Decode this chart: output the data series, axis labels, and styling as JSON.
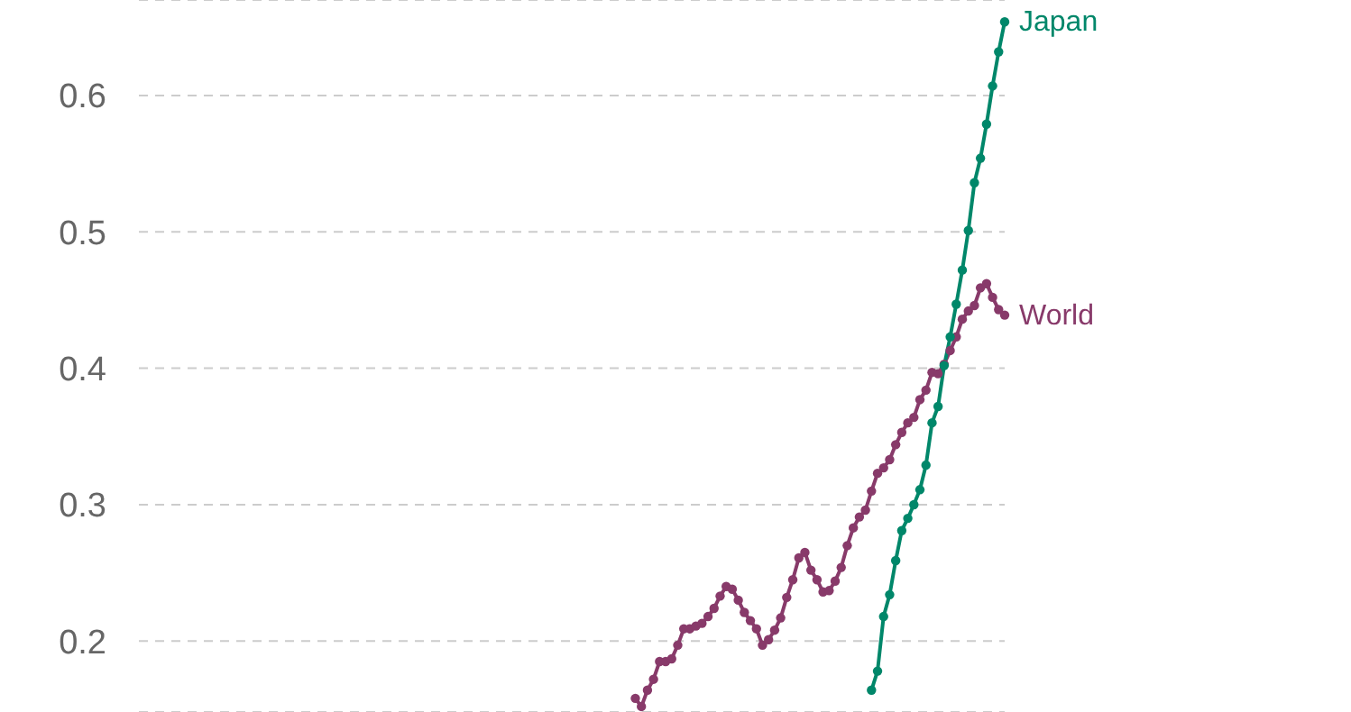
{
  "chart_data": {
    "type": "line",
    "categories": [
      null,
      null,
      null,
      null,
      null,
      null,
      null,
      null,
      null,
      null,
      null,
      null,
      null,
      null,
      null,
      null,
      null,
      null,
      null,
      null,
      null,
      null,
      null,
      null,
      null,
      null,
      null,
      null,
      null,
      null,
      null,
      null,
      null,
      null,
      null,
      null,
      null,
      null,
      null,
      null,
      null,
      null,
      null,
      null,
      null,
      null,
      null,
      null,
      null,
      null,
      null,
      null,
      null,
      null,
      null,
      null,
      null,
      null,
      null,
      null,
      null,
      null,
      null,
      null,
      null,
      null,
      null,
      null,
      null,
      null,
      null,
      null,
      null,
      null,
      null,
      null,
      null,
      null,
      null,
      null,
      null,
      null,
      null,
      null,
      null,
      null,
      null,
      null,
      null,
      null,
      null,
      null,
      null,
      null,
      null,
      null,
      null,
      null,
      null,
      null,
      null,
      null,
      null,
      null,
      null,
      null,
      null,
      null,
      null,
      null,
      null,
      null,
      null,
      null,
      null,
      null,
      null,
      null,
      null,
      null,
      null,
      null,
      null,
      null,
      null,
      null,
      null,
      null,
      null,
      null,
      null,
      null,
      null,
      null,
      null,
      null,
      null,
      null,
      null,
      null,
      null,
      null,
      null,
      null
    ],
    "series": [
      {
        "name": "World",
        "color": "#883a6a",
        "values": [
          null,
          null,
          null,
          null,
          null,
          null,
          null,
          null,
          null,
          null,
          null,
          null,
          null,
          null,
          null,
          null,
          null,
          null,
          null,
          null,
          null,
          null,
          null,
          null,
          null,
          null,
          null,
          null,
          null,
          null,
          null,
          null,
          null,
          null,
          null,
          null,
          null,
          null,
          null,
          null,
          null,
          null,
          null,
          null,
          null,
          null,
          null,
          null,
          null,
          null,
          null,
          null,
          null,
          null,
          null,
          null,
          null,
          null,
          null,
          null,
          null,
          null,
          null,
          null,
          null,
          null,
          null,
          null,
          null,
          null,
          null,
          null,
          null,
          null,
          null,
          null,
          null,
          null,
          null,
          null,
          null,
          null,
          0.158,
          0.152,
          0.164,
          0.172,
          0.185,
          0.185,
          0.187,
          0.197,
          0.209,
          0.209,
          0.211,
          0.213,
          0.218,
          0.224,
          0.233,
          0.24,
          0.238,
          0.23,
          0.221,
          0.215,
          0.209,
          0.197,
          0.201,
          0.208,
          0.217,
          0.232,
          0.245,
          0.261,
          0.265,
          0.252,
          0.245,
          0.236,
          0.237,
          0.244,
          0.254,
          0.27,
          0.283,
          0.291,
          0.296,
          0.31,
          0.323,
          0.327,
          0.333,
          0.344,
          0.353,
          0.36,
          0.364,
          0.377,
          0.384,
          0.397,
          0.396,
          0.403,
          0.413,
          0.423,
          0.436,
          0.442,
          0.446,
          0.459,
          0.462,
          0.452,
          0.443,
          0.439
        ]
      },
      {
        "name": "Japan",
        "color": "#00876a",
        "values": [
          null,
          null,
          null,
          null,
          null,
          null,
          null,
          null,
          null,
          null,
          null,
          null,
          null,
          null,
          null,
          null,
          null,
          null,
          null,
          null,
          null,
          null,
          null,
          null,
          null,
          null,
          null,
          null,
          null,
          null,
          null,
          null,
          null,
          null,
          null,
          null,
          null,
          null,
          null,
          null,
          null,
          null,
          null,
          null,
          null,
          null,
          null,
          null,
          null,
          null,
          null,
          null,
          null,
          null,
          null,
          null,
          null,
          null,
          null,
          null,
          null,
          null,
          null,
          null,
          null,
          null,
          null,
          null,
          null,
          null,
          null,
          null,
          null,
          null,
          null,
          null,
          null,
          null,
          null,
          null,
          null,
          null,
          null,
          null,
          null,
          null,
          null,
          null,
          null,
          null,
          null,
          null,
          null,
          null,
          null,
          null,
          null,
          null,
          null,
          null,
          null,
          null,
          null,
          null,
          null,
          null,
          null,
          null,
          null,
          null,
          null,
          null,
          null,
          null,
          null,
          null,
          null,
          null,
          null,
          null,
          null,
          0.164,
          0.178,
          0.218,
          0.234,
          0.259,
          0.281,
          0.29,
          0.3,
          0.311,
          0.329,
          0.36,
          0.372,
          0.402,
          0.423,
          0.447,
          0.472,
          0.501,
          0.536,
          0.554,
          0.579,
          0.607,
          0.632,
          0.654
        ]
      }
    ],
    "ylim": [
      0.148,
      0.67
    ],
    "yticks": [
      0.2,
      0.3,
      0.4,
      0.5,
      0.6
    ],
    "grid": "y",
    "tick_labels": "y",
    "marker": "circle",
    "line_style": "solid"
  }
}
